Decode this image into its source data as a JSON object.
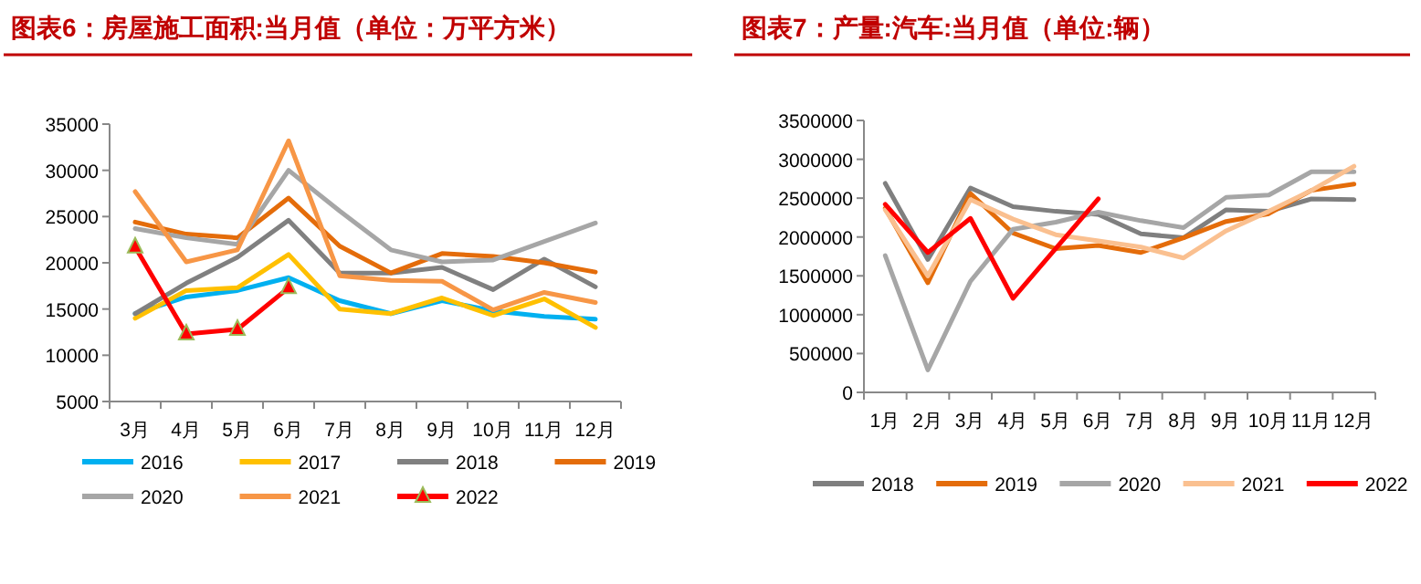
{
  "chart_data": [
    {
      "type": "line",
      "title": "图表6：房屋施工面积:当月值（单位：万平方米）",
      "categories": [
        "3月",
        "4月",
        "5月",
        "6月",
        "7月",
        "8月",
        "9月",
        "10月",
        "11月",
        "12月"
      ],
      "ylim": [
        5000,
        35000
      ],
      "yticks": [
        5000,
        10000,
        15000,
        20000,
        25000,
        30000,
        35000
      ],
      "grid": false,
      "legend": "bottom",
      "series": [
        {
          "name": "2016",
          "color": "#00b0f0",
          "values": [
            14500,
            16300,
            17000,
            18400,
            15900,
            14500,
            15900,
            14800,
            14200,
            13900
          ]
        },
        {
          "name": "2017",
          "color": "#ffc000",
          "values": [
            14000,
            17000,
            17300,
            20900,
            15000,
            14500,
            16200,
            14300,
            16100,
            13000
          ]
        },
        {
          "name": "2018",
          "color": "#808080",
          "values": [
            14500,
            17800,
            20600,
            24600,
            18900,
            18900,
            19500,
            17100,
            20400,
            17400
          ]
        },
        {
          "name": "2019",
          "color": "#e46c0a",
          "values": [
            24400,
            23100,
            22700,
            27000,
            21800,
            18900,
            21000,
            20700,
            20000,
            19000
          ]
        },
        {
          "name": "2020",
          "color": "#a6a6a6",
          "values": [
            23700,
            22700,
            22000,
            30000,
            25600,
            21400,
            20100,
            20300,
            22300,
            24300
          ]
        },
        {
          "name": "2021",
          "color": "#f79646",
          "values": [
            27700,
            20100,
            21400,
            33200,
            18600,
            18100,
            18000,
            14900,
            16800,
            15700
          ]
        },
        {
          "name": "2022",
          "color": "#ff0000",
          "marker": "triangle",
          "values": [
            21700,
            12300,
            12800,
            17300,
            null,
            null,
            null,
            null,
            null,
            null
          ]
        }
      ]
    },
    {
      "type": "line",
      "title": "图表7：产量:汽车:当月值（单位:辆）",
      "categories": [
        "1月",
        "2月",
        "3月",
        "4月",
        "5月",
        "6月",
        "7月",
        "8月",
        "9月",
        "10月",
        "11月",
        "12月"
      ],
      "ylim": [
        0,
        3500000
      ],
      "yticks": [
        0,
        500000,
        1000000,
        1500000,
        2000000,
        2500000,
        3000000,
        3500000
      ],
      "grid": false,
      "legend": "bottom",
      "series": [
        {
          "name": "2018",
          "color": "#7f7f7f",
          "values": [
            2690000,
            1710000,
            2630000,
            2390000,
            2330000,
            2290000,
            2040000,
            1990000,
            2350000,
            2330000,
            2490000,
            2480000
          ]
        },
        {
          "name": "2019",
          "color": "#e46c0a",
          "values": [
            2370000,
            1410000,
            2560000,
            2050000,
            1850000,
            1890000,
            1800000,
            1990000,
            2200000,
            2300000,
            2600000,
            2680000
          ]
        },
        {
          "name": "2020",
          "color": "#a6a6a6",
          "values": [
            1760000,
            290000,
            1430000,
            2100000,
            2190000,
            2320000,
            2210000,
            2120000,
            2510000,
            2540000,
            2840000,
            2840000
          ]
        },
        {
          "name": "2021",
          "color": "#fac090",
          "values": [
            2350000,
            1500000,
            2480000,
            2230000,
            2030000,
            1950000,
            1870000,
            1730000,
            2080000,
            2330000,
            2600000,
            2910000
          ]
        },
        {
          "name": "2022",
          "color": "#ff0000",
          "values": [
            2420000,
            1800000,
            2240000,
            1210000,
            1850000,
            2490000,
            null,
            null,
            null,
            null,
            null,
            null
          ]
        }
      ]
    }
  ]
}
